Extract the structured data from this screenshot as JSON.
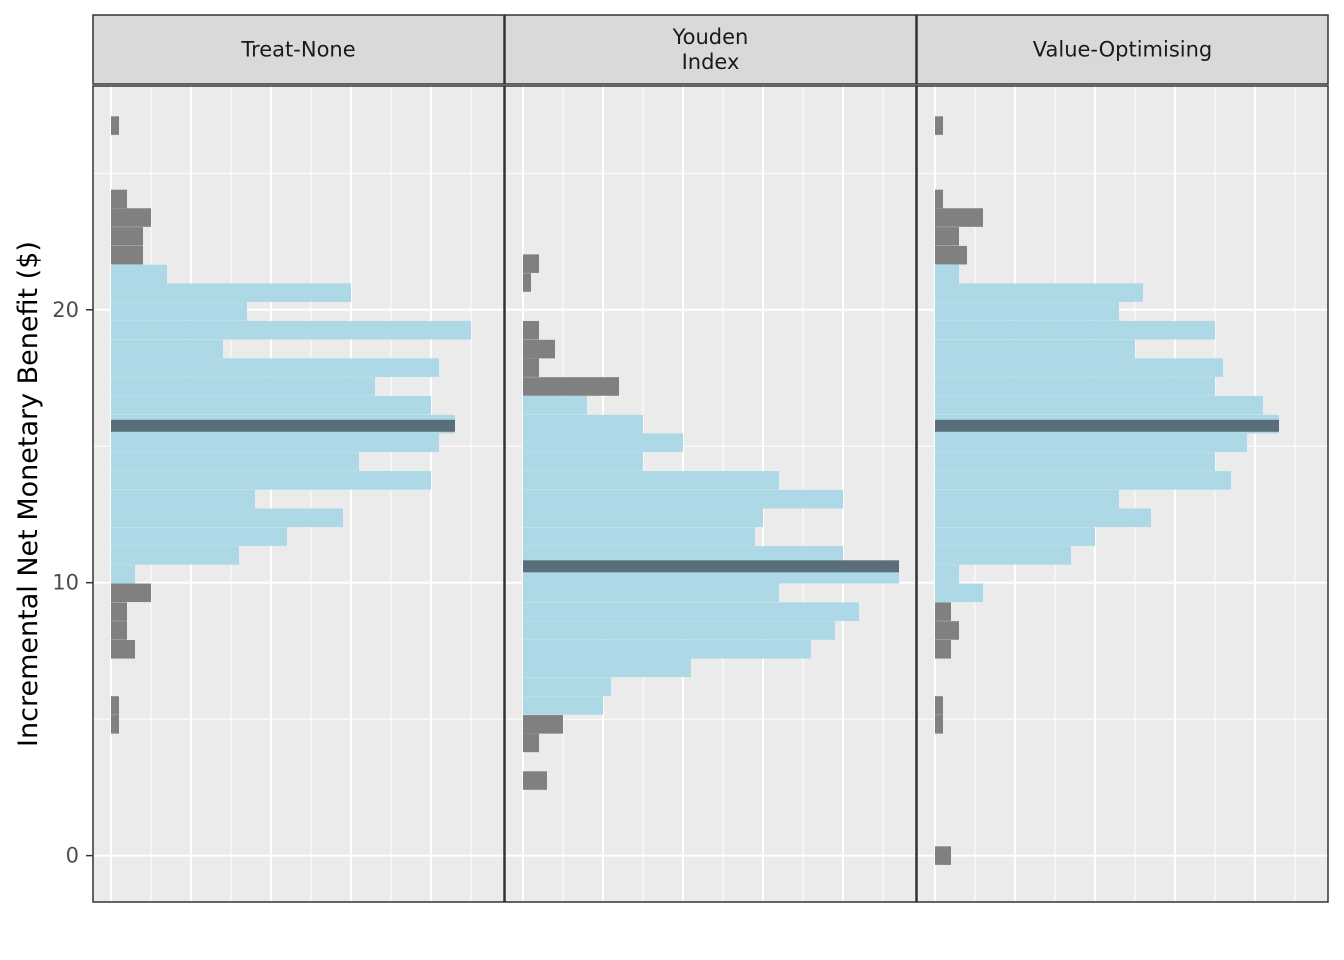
{
  "chart_data": {
    "type": "histogram",
    "ylabel": "Incremental Net Monetary Benefit ($)",
    "xlabel": "",
    "ylim": [
      -1.7,
      28.2
    ],
    "y_ticks": [
      0,
      10,
      20
    ],
    "y_tick_labels": [
      "0",
      "10",
      "20"
    ],
    "bin_width": 0.68,
    "x_range": [
      -0.45,
      27.2
    ],
    "grid": true,
    "colors": {
      "in_interval": "#ADD8E6",
      "out_interval": "#808080",
      "median_line": "#596E78",
      "panel_bg": "#EBEBEB",
      "strip_bg": "#D9D9D9"
    },
    "panels": [
      {
        "label": [
          "Treat-None"
        ],
        "median": 15.75,
        "interval": [
          10.2,
          21.9
        ],
        "bins": [
          {
            "y": 26.75,
            "count": 1
          },
          {
            "y": 24.06,
            "count": 2
          },
          {
            "y": 23.38,
            "count": 5
          },
          {
            "y": 22.69,
            "count": 4
          },
          {
            "y": 22.0,
            "count": 4
          },
          {
            "y": 21.31,
            "count": 7
          },
          {
            "y": 20.63,
            "count": 30
          },
          {
            "y": 19.94,
            "count": 17
          },
          {
            "y": 19.25,
            "count": 45
          },
          {
            "y": 18.56,
            "count": 14
          },
          {
            "y": 17.88,
            "count": 41
          },
          {
            "y": 17.19,
            "count": 33
          },
          {
            "y": 16.5,
            "count": 40
          },
          {
            "y": 15.81,
            "count": 43
          },
          {
            "y": 15.13,
            "count": 41
          },
          {
            "y": 14.44,
            "count": 31
          },
          {
            "y": 13.75,
            "count": 40
          },
          {
            "y": 13.06,
            "count": 18
          },
          {
            "y": 12.38,
            "count": 29
          },
          {
            "y": 11.69,
            "count": 22
          },
          {
            "y": 11.0,
            "count": 16
          },
          {
            "y": 10.31,
            "count": 3
          },
          {
            "y": 9.63,
            "count": 5
          },
          {
            "y": 8.94,
            "count": 2
          },
          {
            "y": 8.25,
            "count": 2
          },
          {
            "y": 7.56,
            "count": 3
          },
          {
            "y": 5.5,
            "count": 1
          },
          {
            "y": 4.81,
            "count": 1
          }
        ]
      },
      {
        "label": [
          "Youden",
          "Index"
        ],
        "median": 10.6,
        "interval": [
          5.2,
          16.9
        ],
        "bins": [
          {
            "y": 21.69,
            "count": 2
          },
          {
            "y": 21.0,
            "count": 1
          },
          {
            "y": 19.25,
            "count": 2
          },
          {
            "y": 18.56,
            "count": 4
          },
          {
            "y": 17.88,
            "count": 2
          },
          {
            "y": 17.19,
            "count": 12
          },
          {
            "y": 16.5,
            "count": 8
          },
          {
            "y": 15.81,
            "count": 15
          },
          {
            "y": 15.13,
            "count": 20
          },
          {
            "y": 14.44,
            "count": 15
          },
          {
            "y": 13.75,
            "count": 32
          },
          {
            "y": 13.06,
            "count": 40
          },
          {
            "y": 12.38,
            "count": 30
          },
          {
            "y": 11.69,
            "count": 29
          },
          {
            "y": 11.0,
            "count": 40
          },
          {
            "y": 10.31,
            "count": 47
          },
          {
            "y": 9.63,
            "count": 32
          },
          {
            "y": 8.94,
            "count": 42
          },
          {
            "y": 8.25,
            "count": 39
          },
          {
            "y": 7.56,
            "count": 36
          },
          {
            "y": 6.88,
            "count": 21
          },
          {
            "y": 6.19,
            "count": 11
          },
          {
            "y": 5.5,
            "count": 10
          },
          {
            "y": 4.81,
            "count": 5
          },
          {
            "y": 4.13,
            "count": 2
          },
          {
            "y": 2.75,
            "count": 3
          }
        ]
      },
      {
        "label": [
          "Value-Optimising"
        ],
        "median": 15.75,
        "interval": [
          9.2,
          21.9
        ],
        "bins": [
          {
            "y": 26.75,
            "count": 1
          },
          {
            "y": 24.06,
            "count": 1
          },
          {
            "y": 23.38,
            "count": 6
          },
          {
            "y": 22.69,
            "count": 3
          },
          {
            "y": 22.0,
            "count": 4
          },
          {
            "y": 21.31,
            "count": 3
          },
          {
            "y": 20.63,
            "count": 26
          },
          {
            "y": 19.94,
            "count": 23
          },
          {
            "y": 19.25,
            "count": 35
          },
          {
            "y": 18.56,
            "count": 25
          },
          {
            "y": 17.88,
            "count": 36
          },
          {
            "y": 17.19,
            "count": 35
          },
          {
            "y": 16.5,
            "count": 41
          },
          {
            "y": 15.81,
            "count": 43
          },
          {
            "y": 15.13,
            "count": 39
          },
          {
            "y": 14.44,
            "count": 35
          },
          {
            "y": 13.75,
            "count": 37
          },
          {
            "y": 13.06,
            "count": 23
          },
          {
            "y": 12.38,
            "count": 27
          },
          {
            "y": 11.69,
            "count": 20
          },
          {
            "y": 11.0,
            "count": 17
          },
          {
            "y": 10.31,
            "count": 3
          },
          {
            "y": 9.63,
            "count": 6
          },
          {
            "y": 8.94,
            "count": 2
          },
          {
            "y": 8.25,
            "count": 3
          },
          {
            "y": 7.56,
            "count": 2
          },
          {
            "y": 5.5,
            "count": 1
          },
          {
            "y": 4.81,
            "count": 1
          },
          {
            "y": 0.0,
            "count": 2
          }
        ]
      }
    ]
  }
}
